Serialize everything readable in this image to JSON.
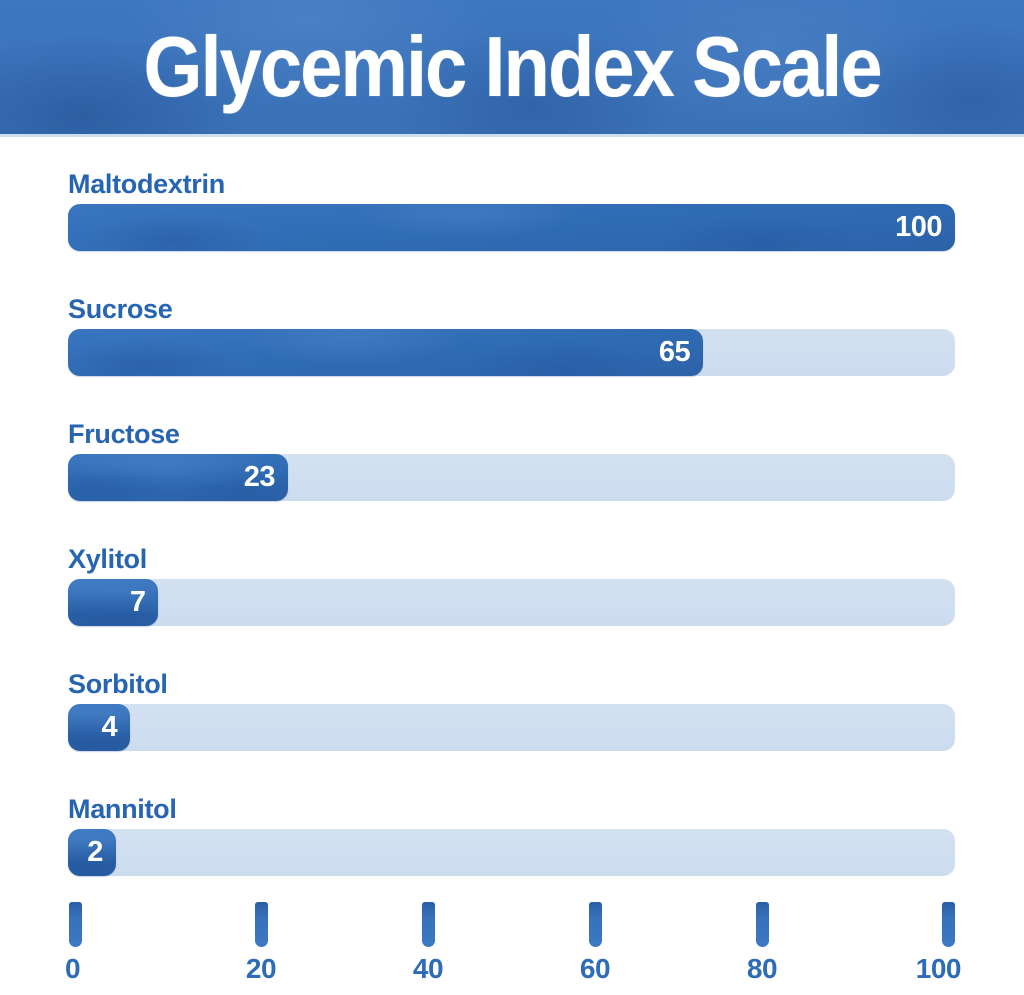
{
  "header": {
    "title": "Glycemic Index Scale",
    "bg_color": "#3a72b9",
    "text_color": "#ffffff"
  },
  "chart_data": {
    "type": "bar",
    "orientation": "horizontal",
    "title": "Glycemic Index Scale",
    "categories": [
      "Maltodextrin",
      "Sucrose",
      "Fructose",
      "Xylitol",
      "Sorbitol",
      "Mannitol"
    ],
    "values": [
      100,
      65,
      23,
      7,
      4,
      2
    ],
    "value_labels": [
      "100",
      "65",
      "23",
      "7",
      "4",
      "2"
    ],
    "xlim": [
      0,
      100
    ],
    "x_ticks": [
      "0",
      "20",
      "40",
      "60",
      "80",
      "100"
    ],
    "grid": false,
    "legend": false,
    "display_fill_pct": [
      100,
      71.6,
      24.8,
      10.2,
      7.0,
      5.4
    ],
    "colors": {
      "bar_fill": "#2f6bb3",
      "bar_track": "#ccdcef",
      "category_label": "#2765b3",
      "value_label": "#ffffff",
      "axis_tick": "#3671ba",
      "axis_label": "#2e6cb8"
    }
  }
}
